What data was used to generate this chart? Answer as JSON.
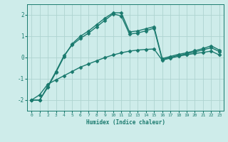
{
  "xlabel": "Humidex (Indice chaleur)",
  "ylabel": "",
  "background_color": "#ceecea",
  "grid_color": "#aed4d0",
  "line_color": "#1a7a6e",
  "xlim": [
    -0.5,
    23.5
  ],
  "ylim": [
    -2.5,
    2.5
  ],
  "yticks": [
    -2,
    -1,
    0,
    1,
    2
  ],
  "xticks": [
    0,
    1,
    2,
    3,
    4,
    5,
    6,
    7,
    8,
    9,
    10,
    11,
    12,
    13,
    14,
    15,
    16,
    17,
    18,
    19,
    20,
    21,
    22,
    23
  ],
  "series": [
    {
      "x": [
        0,
        1,
        2,
        3,
        4,
        5,
        6,
        7,
        8,
        9,
        10,
        11,
        12,
        13,
        14,
        15,
        16,
        17,
        18,
        19,
        20,
        21,
        22,
        23
      ],
      "y": [
        -2.0,
        -2.0,
        -1.4,
        -0.7,
        0.05,
        0.65,
        1.0,
        1.25,
        1.55,
        1.85,
        2.1,
        2.1,
        1.2,
        1.25,
        1.35,
        1.45,
        -0.05,
        0.05,
        0.15,
        0.22,
        0.32,
        0.42,
        0.55,
        0.35
      ],
      "marker": "D",
      "markersize": 2.5,
      "linewidth": 1.0
    },
    {
      "x": [
        0,
        1,
        2,
        3,
        4,
        5,
        6,
        7,
        8,
        9,
        10,
        11,
        12,
        13,
        14,
        15,
        16,
        17,
        18,
        19,
        20,
        21,
        22,
        23
      ],
      "y": [
        -2.0,
        -2.0,
        -1.35,
        -0.65,
        0.1,
        0.6,
        0.9,
        1.15,
        1.45,
        1.75,
        2.05,
        1.95,
        1.1,
        1.15,
        1.25,
        1.38,
        -0.1,
        0.0,
        0.1,
        0.18,
        0.26,
        0.36,
        0.46,
        0.28
      ],
      "marker": "D",
      "markersize": 2.5,
      "linewidth": 1.0
    },
    {
      "x": [
        0,
        1,
        2,
        3,
        4,
        5,
        6,
        7,
        8,
        9,
        10,
        11,
        12,
        13,
        14,
        15,
        16,
        17,
        18,
        19,
        20,
        21,
        22,
        23
      ],
      "y": [
        -2.0,
        -1.75,
        -1.25,
        -1.05,
        -0.85,
        -0.65,
        -0.45,
        -0.3,
        -0.15,
        0.0,
        0.12,
        0.22,
        0.3,
        0.35,
        0.38,
        0.4,
        -0.12,
        -0.03,
        0.06,
        0.13,
        0.19,
        0.24,
        0.3,
        0.12
      ],
      "marker": "D",
      "markersize": 2.5,
      "linewidth": 1.0
    }
  ]
}
